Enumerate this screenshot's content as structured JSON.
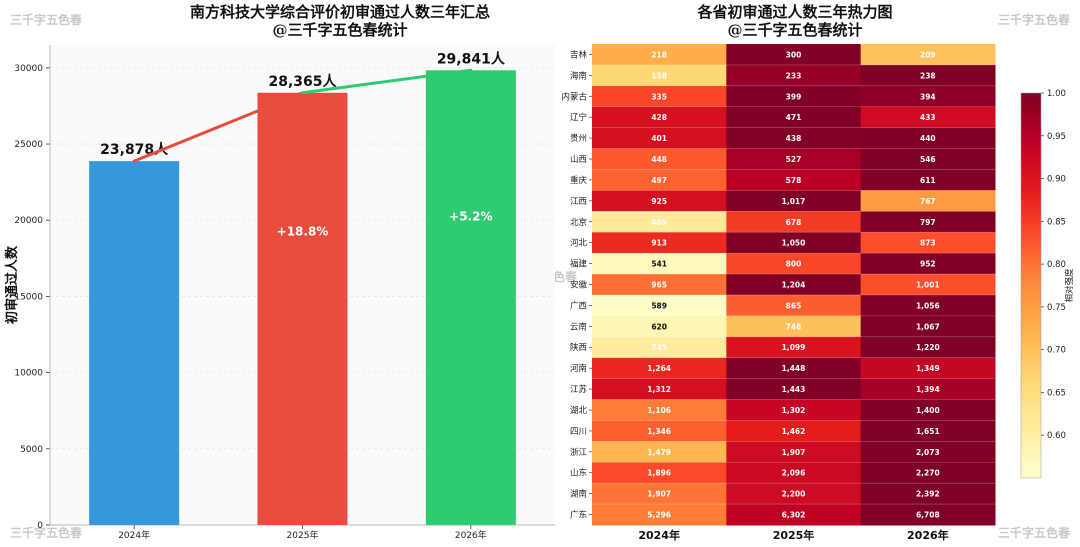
{
  "watermark": "三千字五色春",
  "left": {
    "title_line1": "南方科技大学综合评价初审通过人数三年汇总",
    "title_line2": "@三千字五色春统计"
  },
  "right": {
    "title_line1": "各省初审通过人数三年热力图",
    "title_line2": "@三千字五色春统计",
    "colorbar_label": "相对强度"
  },
  "chart_data": [
    {
      "type": "bar",
      "categories": [
        "2024年",
        "2025年",
        "2026年"
      ],
      "values": [
        23878,
        28365,
        29841
      ],
      "value_labels": [
        "23,878人",
        "28,365人",
        "29,841人"
      ],
      "growth_labels": [
        "",
        "+18.8%",
        "+5.2%"
      ],
      "colors": [
        "#3498db",
        "#e74c3c",
        "#2ecc71"
      ],
      "trend_colors": [
        "#e74c3c",
        "#2ecc71"
      ],
      "ylabel": "初审通过人数",
      "ylim": [
        0,
        31500
      ],
      "yticks": [
        0,
        5000,
        10000,
        15000,
        20000,
        25000,
        30000
      ],
      "grid": "y"
    },
    {
      "type": "heatmap",
      "columns": [
        "2024年",
        "2025年",
        "2026年"
      ],
      "rows": [
        "吉林",
        "海南",
        "内蒙古",
        "辽宁",
        "贵州",
        "山西",
        "重庆",
        "江西",
        "北京",
        "河北",
        "福建",
        "安徽",
        "广西",
        "云南",
        "陕西",
        "河南",
        "江苏",
        "湖北",
        "四川",
        "浙江",
        "山东",
        "湖南",
        "广东"
      ],
      "values": [
        [
          218,
          300,
          209
        ],
        [
          158,
          233,
          238
        ],
        [
          335,
          399,
          394
        ],
        [
          428,
          471,
          433
        ],
        [
          401,
          438,
          440
        ],
        [
          448,
          527,
          546
        ],
        [
          497,
          578,
          611
        ],
        [
          925,
          1017,
          767
        ],
        [
          489,
          678,
          797
        ],
        [
          913,
          1050,
          873
        ],
        [
          541,
          800,
          952
        ],
        [
          965,
          1204,
          1001
        ],
        [
          589,
          865,
          1056
        ],
        [
          620,
          746,
          1067
        ],
        [
          745,
          1099,
          1220
        ],
        [
          1264,
          1448,
          1349
        ],
        [
          1312,
          1443,
          1394
        ],
        [
          1106,
          1302,
          1400
        ],
        [
          1346,
          1462,
          1651
        ],
        [
          1479,
          1907,
          2073
        ],
        [
          1896,
          2096,
          2270
        ],
        [
          1907,
          2200,
          2392
        ],
        [
          5296,
          6302,
          6708
        ]
      ],
      "colorbar": {
        "label": "相对强度",
        "range": [
          0.55,
          1.0
        ],
        "ticks": [
          0.6,
          0.65,
          0.7,
          0.75,
          0.8,
          0.85,
          0.9,
          0.95,
          1.0
        ]
      },
      "colormap": "YlOrRd"
    }
  ]
}
